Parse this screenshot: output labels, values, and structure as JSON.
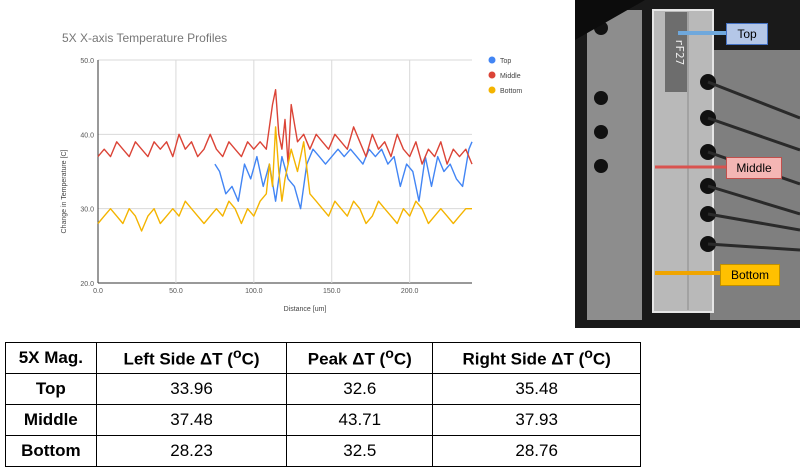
{
  "chart_data": {
    "type": "line",
    "title": "5X X-axis Temperature Profiles",
    "xlabel": "Distance [um]",
    "ylabel": "Change in Temperature [C]",
    "xlim": [
      0,
      240
    ],
    "ylim": [
      20,
      50
    ],
    "xticks": [
      0,
      50,
      100,
      150,
      200
    ],
    "yticks": [
      20,
      30,
      40,
      50
    ],
    "xtick_labels": [
      "0.0",
      "50.0",
      "100.0",
      "150.0",
      "200.0"
    ],
    "ytick_labels": [
      "20.0",
      "30.0",
      "40.0",
      "50.0"
    ],
    "grid": true,
    "legend_position": "top-right",
    "series": [
      {
        "name": "Top",
        "color": "#4285F4",
        "x": [
          75,
          78,
          82,
          86,
          90,
          94,
          98,
          102,
          106,
          110,
          114,
          118,
          122,
          126,
          130,
          134,
          138,
          142,
          146,
          150,
          154,
          158,
          162,
          166,
          170,
          174,
          178,
          182,
          186,
          190,
          194,
          198,
          202,
          206,
          210,
          214,
          218,
          222,
          226,
          230,
          234,
          238,
          240
        ],
        "y": [
          36,
          35,
          32,
          33,
          31,
          36,
          34,
          37,
          33,
          36,
          31,
          37,
          34,
          33,
          30,
          36,
          38,
          37,
          36,
          37,
          38,
          37,
          38,
          37,
          36,
          38,
          37,
          38,
          36,
          37,
          33,
          36,
          35,
          31,
          37,
          33,
          37,
          35,
          36,
          34,
          33,
          38,
          39
        ]
      },
      {
        "name": "Middle",
        "color": "#DB4437",
        "x": [
          0,
          4,
          8,
          12,
          16,
          20,
          24,
          28,
          32,
          36,
          40,
          44,
          48,
          52,
          56,
          60,
          64,
          68,
          72,
          76,
          80,
          84,
          88,
          92,
          96,
          100,
          104,
          108,
          110,
          112,
          114,
          116,
          118,
          120,
          122,
          124,
          128,
          132,
          136,
          140,
          144,
          148,
          152,
          156,
          160,
          164,
          168,
          172,
          176,
          180,
          184,
          188,
          192,
          196,
          200,
          204,
          208,
          212,
          216,
          220,
          224,
          228,
          232,
          236,
          240
        ],
        "y": [
          37,
          38,
          37,
          39,
          38,
          37,
          39,
          38,
          37,
          39,
          38,
          39,
          37,
          40,
          38,
          39,
          37,
          38,
          40,
          38,
          37,
          39,
          38,
          37,
          39,
          38,
          39,
          38,
          41,
          44,
          46,
          40,
          38,
          42,
          36,
          44,
          39,
          40,
          38,
          40,
          39,
          38,
          40,
          39,
          38,
          41,
          39,
          37,
          40,
          38,
          39,
          37,
          40,
          38,
          37,
          39,
          36,
          38,
          37,
          39,
          36,
          38,
          37,
          38,
          36
        ]
      },
      {
        "name": "Bottom",
        "color": "#F4B400",
        "x": [
          0,
          4,
          8,
          12,
          16,
          20,
          24,
          28,
          32,
          36,
          40,
          44,
          48,
          52,
          56,
          60,
          64,
          68,
          72,
          76,
          80,
          84,
          88,
          92,
          96,
          100,
          104,
          108,
          110,
          112,
          114,
          116,
          118,
          120,
          122,
          124,
          128,
          132,
          136,
          140,
          144,
          148,
          152,
          156,
          160,
          164,
          168,
          172,
          176,
          180,
          184,
          188,
          192,
          196,
          200,
          204,
          208,
          212,
          216,
          220,
          224,
          228,
          232,
          236,
          240
        ],
        "y": [
          28,
          29,
          30,
          29,
          28,
          30,
          29,
          27,
          29,
          30,
          28,
          29,
          30,
          29,
          31,
          30,
          29,
          28,
          29,
          30,
          29,
          31,
          30,
          28,
          30,
          29,
          31,
          32,
          36,
          33,
          41,
          35,
          31,
          34,
          36,
          38,
          35,
          39,
          32,
          31,
          30,
          29,
          31,
          30,
          29,
          31,
          30,
          28,
          29,
          31,
          30,
          29,
          28,
          30,
          29,
          31,
          30,
          28,
          29,
          30,
          29,
          28,
          29,
          30,
          30
        ]
      }
    ]
  },
  "photo": {
    "labels": [
      "Top",
      "Middle",
      "Bottom"
    ],
    "chip_text": "rF27"
  },
  "table": {
    "headers": [
      "5X Mag.",
      "Left Side ΔT (oC)",
      "Peak ΔT (oC)",
      "Right Side ΔT (oC)"
    ],
    "rows": [
      [
        "Top",
        "33.96",
        "32.6",
        "35.48"
      ],
      [
        "Middle",
        "37.48",
        "43.71",
        "37.93"
      ],
      [
        "Bottom",
        "28.23",
        "32.5",
        "28.76"
      ]
    ]
  }
}
